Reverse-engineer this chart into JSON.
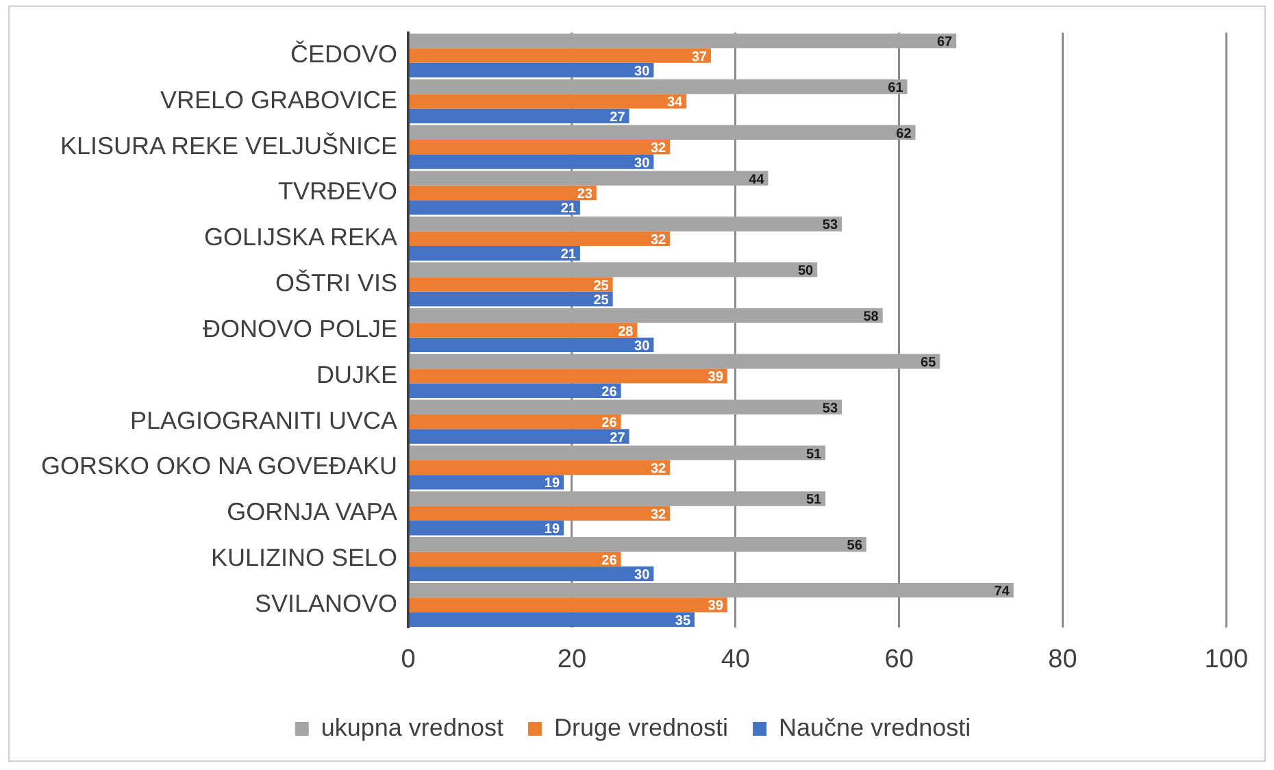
{
  "chart_data": {
    "type": "bar",
    "orientation": "horizontal",
    "categories": [
      "ČEDOVO",
      "VRELO GRABOVICE",
      "KLISURA REKE VELJUŠNICE",
      "TVRĐEVO",
      "GOLIJSKA REKA",
      "OŠTRI VIS",
      "ĐONOVO POLJE",
      "DUJKE",
      "PLAGIOGRANITI UVCA",
      "GORSKO OKO NA GOVEĐAKU",
      "GORNJA VAPA",
      "KULIZINO SELO",
      "SVILANOVO"
    ],
    "series": [
      {
        "name": "ukupna vrednost",
        "color": "#a5a5a5",
        "values": [
          67,
          61,
          62,
          44,
          53,
          50,
          58,
          65,
          53,
          51,
          51,
          56,
          74
        ]
      },
      {
        "name": "Druge vrednosti",
        "color": "#ed7d31",
        "values": [
          37,
          34,
          32,
          23,
          32,
          25,
          28,
          39,
          26,
          32,
          32,
          26,
          39
        ]
      },
      {
        "name": "Naučne vrednosti",
        "color": "#4472c4",
        "values": [
          30,
          27,
          30,
          21,
          21,
          25,
          30,
          26,
          27,
          19,
          19,
          30,
          35
        ]
      }
    ],
    "xlim": [
      0,
      100
    ],
    "xticks": [
      0,
      20,
      40,
      60,
      80,
      100
    ],
    "grid": "x",
    "legend": "bottom",
    "data_labels": true
  }
}
